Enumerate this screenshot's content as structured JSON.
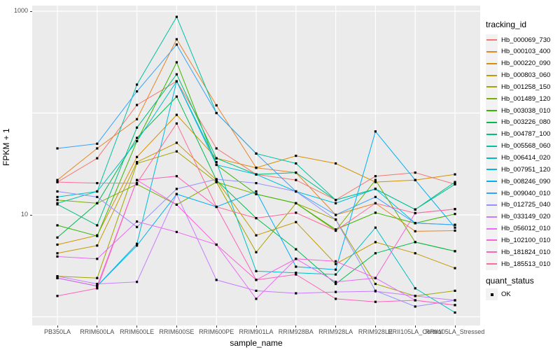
{
  "chart_data": {
    "type": "line",
    "title": "",
    "xlabel": "sample_name",
    "ylabel": "FPKM + 1",
    "y_scale": "log10",
    "ylim": [
      0.9,
      1140
    ],
    "y_tick_labels": [
      {
        "value": 1000,
        "label": "1000"
      },
      {
        "value": 10,
        "label": "10"
      }
    ],
    "y_gridlines": [
      1,
      10,
      100,
      1000
    ],
    "grid": "on",
    "legend_position": "right",
    "panel_background": "#EBEBEB",
    "gridline_color": "#FFFFFF",
    "point_color": "#000000",
    "categories": [
      "PB350LA",
      "RRIM600LA",
      "RRIM600LE",
      "RRIM600SE",
      "RRIM600PE",
      "RRIM901LA",
      "RRIM928BA",
      "RRIM928LA",
      "RRIM928LE",
      "RRII105LA_Control",
      "RRII105LA_Stressed"
    ],
    "legend_title": "tracking_id",
    "series": [
      {
        "name": "Hb_000069_730",
        "color": "#F8766D",
        "values": [
          21,
          36,
          120,
          205,
          45,
          25,
          22,
          14,
          24,
          26,
          20
        ]
      },
      {
        "name": "Hb_000103_400",
        "color": "#E88526",
        "values": [
          22,
          45,
          87,
          530,
          119,
          29,
          26,
          10,
          13,
          6.9,
          7.0
        ]
      },
      {
        "name": "Hb_000220_090",
        "color": "#D89000",
        "values": [
          5.1,
          6.3,
          37,
          96,
          36,
          29,
          38,
          32,
          21,
          22,
          25
        ]
      },
      {
        "name": "Hb_000803_060",
        "color": "#C49A00",
        "values": [
          4.2,
          5.0,
          33,
          51,
          22,
          6.3,
          8.5,
          3.3,
          5.4,
          4.2,
          3.0
        ]
      },
      {
        "name": "Hb_001258_150",
        "color": "#A3A500",
        "values": [
          2.5,
          2.4,
          32,
          42,
          21,
          4.3,
          13,
          9.0,
          2.1,
          1.6,
          1.8
        ]
      },
      {
        "name": "Hb_001489_120",
        "color": "#7CAE00",
        "values": [
          14,
          13,
          20,
          12.6,
          21,
          16,
          13,
          7.0,
          22,
          5.4,
          4.4
        ]
      },
      {
        "name": "Hb_003038_010",
        "color": "#39B600",
        "values": [
          7.9,
          6.2,
          53,
          315,
          31,
          16,
          13,
          7.2,
          10.5,
          8.3,
          10.2
        ]
      },
      {
        "name": "Hb_003226_080",
        "color": "#00BB4E",
        "values": [
          6.0,
          13,
          57,
          145,
          22,
          9.3,
          4.6,
          2.1,
          4.2,
          5.4,
          4.4
        ]
      },
      {
        "name": "Hb_004787_100",
        "color": "#00BF7D",
        "values": [
          12.7,
          7.9,
          72,
          240,
          36,
          25,
          26,
          14,
          18,
          11.3,
          21
        ]
      },
      {
        "name": "Hb_005568_060",
        "color": "#00C1A3",
        "values": [
          13,
          17,
          190,
          880,
          100,
          40,
          32,
          14,
          18,
          11.3,
          20
        ]
      },
      {
        "name": "Hb_006414_020",
        "color": "#00BFC4",
        "values": [
          15,
          17,
          53,
          205,
          33,
          2.8,
          2.7,
          2.6,
          7.5,
          1.9,
          1.1
        ]
      },
      {
        "name": "Hb_007951_120",
        "color": "#00BAE0",
        "values": [
          2.4,
          2.0,
          5.2,
          205,
          31,
          25,
          17,
          13,
          18,
          8.3,
          8.0
        ]
      },
      {
        "name": "Hb_008246_090",
        "color": "#00B0F6",
        "values": [
          2.4,
          2.0,
          5.0,
          16,
          12,
          17,
          3.1,
          2.9,
          66,
          22,
          7.5
        ]
      },
      {
        "name": "Hb_009040_010",
        "color": "#35A2FF",
        "values": [
          45,
          50,
          163,
          470,
          100,
          40,
          17,
          10,
          15,
          8.3,
          8.0
        ]
      },
      {
        "name": "Hb_012725_040",
        "color": "#9590FF",
        "values": [
          17,
          15,
          7.6,
          18,
          22.4,
          20.5,
          17,
          9.0,
          1.8,
          1.26,
          1.45
        ]
      },
      {
        "name": "Hb_033149_020",
        "color": "#C77CFF",
        "values": [
          2.5,
          2.1,
          2.2,
          16,
          2.3,
          1.8,
          1.7,
          1.75,
          1.78,
          1.6,
          1.45
        ]
      },
      {
        "name": "Hb_056012_010",
        "color": "#E76BF3",
        "values": [
          3.9,
          3.7,
          8.6,
          6.8,
          5.1,
          1.5,
          3.7,
          2.2,
          2.4,
          1.45,
          1.3
        ]
      },
      {
        "name": "Hb_102100_010",
        "color": "#FA62DB",
        "values": [
          2.4,
          2.0,
          22,
          12.6,
          5.1,
          2.3,
          3.7,
          3.5,
          2.4,
          10.4,
          11.4
        ]
      },
      {
        "name": "Hb_181824_010",
        "color": "#FF62BC",
        "values": [
          1.6,
          1.9,
          22,
          24,
          12,
          2.3,
          2.6,
          1.5,
          1.4,
          1.45,
          1.3
        ]
      },
      {
        "name": "Hb_185513_010",
        "color": "#FF6A98",
        "values": [
          21,
          20.5,
          20.5,
          79,
          12,
          9.3,
          10.5,
          7.0,
          13,
          10.4,
          11.4
        ]
      }
    ],
    "quant_status_legend": {
      "title": "quant_status",
      "items": [
        {
          "label": "OK",
          "marker": "black-square"
        }
      ]
    }
  }
}
